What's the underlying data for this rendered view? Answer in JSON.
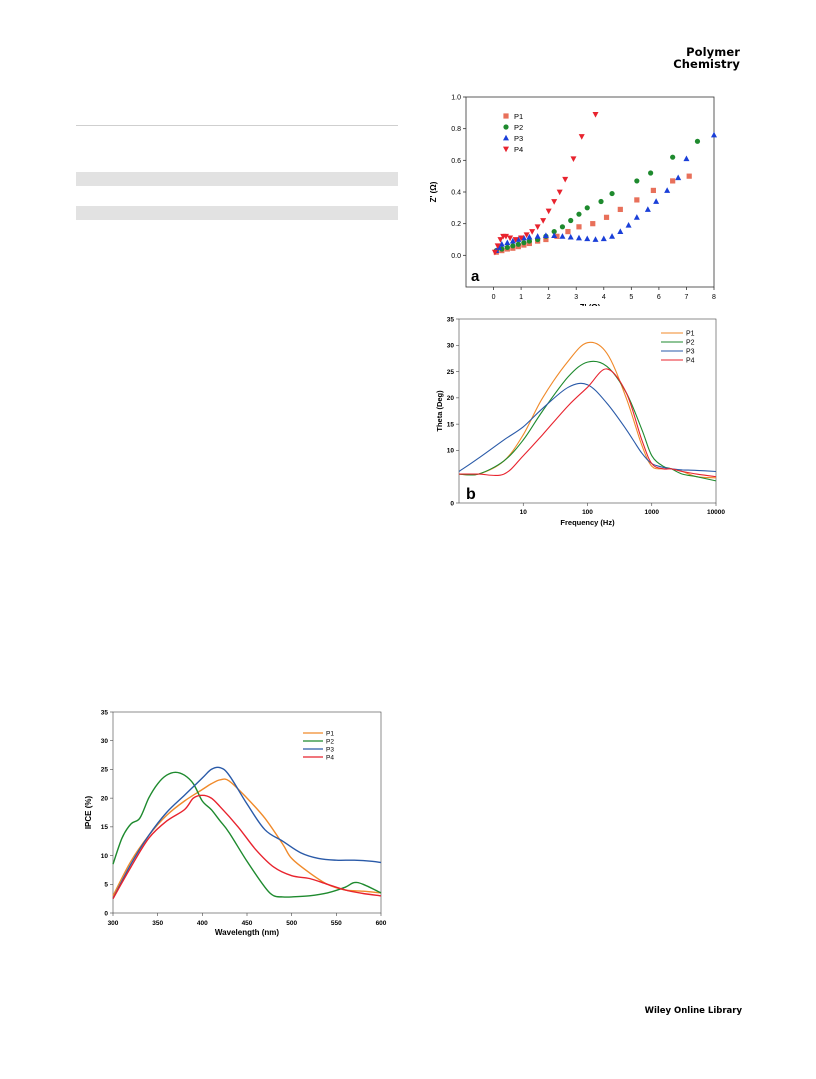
{
  "header": {
    "journal_line1": "Polymer",
    "journal_line2": "Chemistry"
  },
  "footer": {
    "text": "Wiley Online Library"
  },
  "chart_data": [
    {
      "type": "scatter",
      "panel_label": "a",
      "xlabel": "Z' (Ω)",
      "ylabel": "Z' (Ω)",
      "xlim": [
        -1,
        8
      ],
      "ylim": [
        -0.2,
        1.0
      ],
      "xticks": [
        0,
        1,
        2,
        3,
        4,
        5,
        6,
        7,
        8
      ],
      "yticks": [
        0.0,
        0.2,
        0.4,
        0.6,
        0.8,
        1.0
      ],
      "legend_position": "top-left",
      "series": [
        {
          "name": "P1",
          "marker": "square",
          "color": "#e8705a",
          "points": [
            [
              0.1,
              0.02
            ],
            [
              0.3,
              0.03
            ],
            [
              0.5,
              0.04
            ],
            [
              0.7,
              0.045
            ],
            [
              0.9,
              0.055
            ],
            [
              1.1,
              0.065
            ],
            [
              1.3,
              0.075
            ],
            [
              1.6,
              0.09
            ],
            [
              1.9,
              0.1
            ],
            [
              2.3,
              0.12
            ],
            [
              2.7,
              0.15
            ],
            [
              3.1,
              0.18
            ],
            [
              3.6,
              0.2
            ],
            [
              4.1,
              0.24
            ],
            [
              4.6,
              0.29
            ],
            [
              5.2,
              0.35
            ],
            [
              5.8,
              0.41
            ],
            [
              6.5,
              0.47
            ],
            [
              7.1,
              0.5
            ]
          ]
        },
        {
          "name": "P2",
          "marker": "circle",
          "color": "#1e8a2e",
          "points": [
            [
              0.1,
              0.03
            ],
            [
              0.3,
              0.04
            ],
            [
              0.5,
              0.05
            ],
            [
              0.7,
              0.06
            ],
            [
              0.9,
              0.07
            ],
            [
              1.1,
              0.08
            ],
            [
              1.3,
              0.09
            ],
            [
              1.6,
              0.1
            ],
            [
              1.9,
              0.12
            ],
            [
              2.2,
              0.15
            ],
            [
              2.5,
              0.18
            ],
            [
              2.8,
              0.22
            ],
            [
              3.1,
              0.26
            ],
            [
              3.4,
              0.3
            ],
            [
              3.9,
              0.34
            ],
            [
              4.3,
              0.39
            ],
            [
              5.2,
              0.47
            ],
            [
              5.7,
              0.52
            ],
            [
              6.5,
              0.62
            ],
            [
              7.4,
              0.72
            ]
          ]
        },
        {
          "name": "P3",
          "marker": "triangle-up",
          "color": "#1a3fd8",
          "points": [
            [
              0.1,
              0.03
            ],
            [
              0.2,
              0.05
            ],
            [
              0.3,
              0.07
            ],
            [
              0.5,
              0.08
            ],
            [
              0.7,
              0.09
            ],
            [
              0.9,
              0.1
            ],
            [
              1.1,
              0.11
            ],
            [
              1.3,
              0.115
            ],
            [
              1.6,
              0.12
            ],
            [
              1.9,
              0.125
            ],
            [
              2.2,
              0.125
            ],
            [
              2.5,
              0.12
            ],
            [
              2.8,
              0.115
            ],
            [
              3.1,
              0.11
            ],
            [
              3.4,
              0.105
            ],
            [
              3.7,
              0.1
            ],
            [
              4.0,
              0.105
            ],
            [
              4.3,
              0.12
            ],
            [
              4.6,
              0.15
            ],
            [
              4.9,
              0.19
            ],
            [
              5.2,
              0.24
            ],
            [
              5.6,
              0.29
            ],
            [
              5.9,
              0.34
            ],
            [
              6.3,
              0.41
            ],
            [
              6.7,
              0.49
            ],
            [
              7.0,
              0.61
            ],
            [
              8.0,
              0.76
            ]
          ]
        },
        {
          "name": "P4",
          "marker": "triangle-down",
          "color": "#e8232e",
          "points": [
            [
              0.05,
              0.02
            ],
            [
              0.15,
              0.06
            ],
            [
              0.25,
              0.1
            ],
            [
              0.35,
              0.12
            ],
            [
              0.45,
              0.12
            ],
            [
              0.6,
              0.11
            ],
            [
              0.8,
              0.1
            ],
            [
              1.0,
              0.11
            ],
            [
              1.2,
              0.13
            ],
            [
              1.4,
              0.15
            ],
            [
              1.6,
              0.18
            ],
            [
              1.8,
              0.22
            ],
            [
              2.0,
              0.28
            ],
            [
              2.2,
              0.34
            ],
            [
              2.4,
              0.4
            ],
            [
              2.6,
              0.48
            ],
            [
              2.9,
              0.61
            ],
            [
              3.2,
              0.75
            ],
            [
              3.7,
              0.89
            ]
          ]
        }
      ]
    },
    {
      "type": "line",
      "panel_label": "b",
      "xlabel": "Frequency (Hz)",
      "ylabel": "Theta (Deg)",
      "xscale": "log",
      "xlim": [
        1,
        10000
      ],
      "ylim": [
        0,
        35
      ],
      "xticks": [
        10,
        100,
        1000,
        10000
      ],
      "yticks": [
        0,
        10,
        15,
        20,
        25,
        30,
        35
      ],
      "legend_position": "top-right",
      "series": [
        {
          "name": "P1",
          "color": "#f08a2a",
          "x": [
            1,
            2,
            5,
            10,
            20,
            50,
            100,
            200,
            400,
            700,
            1000,
            1500,
            2000,
            3000,
            5000,
            10000
          ],
          "y": [
            5.5,
            5.5,
            8,
            13,
            20,
            27,
            30.5,
            28.5,
            20,
            11,
            7,
            6.5,
            6.5,
            6,
            5,
            4.8
          ]
        },
        {
          "name": "P2",
          "color": "#1e8a2e",
          "x": [
            1,
            2,
            5,
            10,
            20,
            50,
            100,
            200,
            400,
            700,
            1000,
            1500,
            2000,
            3000,
            5000,
            10000
          ],
          "y": [
            5.5,
            5.5,
            8,
            12,
            17.5,
            24,
            26.8,
            26,
            21,
            14,
            9,
            7,
            6.5,
            5.5,
            5,
            4.2
          ]
        },
        {
          "name": "P3",
          "color": "#2a5aa8",
          "x": [
            1,
            2,
            5,
            10,
            20,
            50,
            100,
            200,
            400,
            700,
            1000,
            1500,
            2000,
            3000,
            5000,
            10000
          ],
          "y": [
            6,
            8.5,
            12,
            14.5,
            18,
            22,
            22.5,
            19,
            14,
            9.5,
            7.5,
            6.8,
            6.5,
            6.3,
            6.2,
            6
          ]
        },
        {
          "name": "P4",
          "color": "#e8232e",
          "x": [
            1,
            2,
            5,
            10,
            20,
            50,
            100,
            200,
            400,
            700,
            1000,
            1500,
            2000,
            3000,
            5000,
            10000
          ],
          "y": [
            5.5,
            5.5,
            5.5,
            9,
            13,
            18.5,
            22,
            25.5,
            21,
            12,
            7.5,
            6.5,
            6.5,
            6,
            5.5,
            5
          ]
        }
      ]
    },
    {
      "type": "line",
      "xlabel": "Wavelength (nm)",
      "ylabel": "IPCE (%)",
      "xlim": [
        300,
        600
      ],
      "ylim": [
        0,
        35
      ],
      "xticks": [
        300,
        350,
        400,
        450,
        500,
        550,
        600
      ],
      "yticks": [
        0,
        5,
        10,
        15,
        20,
        25,
        30,
        35
      ],
      "legend_position": "top-right",
      "series": [
        {
          "name": "P1",
          "color": "#f08a2a",
          "x": [
            300,
            320,
            340,
            360,
            380,
            400,
            410,
            420,
            430,
            450,
            470,
            490,
            500,
            520,
            540,
            560,
            580,
            600
          ],
          "y": [
            3,
            9,
            13.5,
            17,
            19.5,
            21.5,
            22.5,
            23.2,
            23,
            20,
            16.5,
            12,
            9.5,
            7,
            5,
            4,
            3.8,
            3.5
          ]
        },
        {
          "name": "P2",
          "color": "#1e8a2e",
          "x": [
            300,
            310,
            320,
            330,
            340,
            350,
            360,
            370,
            380,
            390,
            400,
            410,
            420,
            430,
            450,
            470,
            480,
            490,
            500,
            520,
            540,
            560,
            570,
            580,
            600
          ],
          "y": [
            8.5,
            13,
            15.5,
            16.5,
            20,
            22.5,
            24,
            24.5,
            24,
            22.5,
            19.5,
            18,
            16,
            14,
            9,
            4.5,
            3,
            2.8,
            2.8,
            3,
            3.5,
            4.5,
            5.3,
            5,
            3.5
          ]
        },
        {
          "name": "P3",
          "color": "#2a5aa8",
          "x": [
            300,
            320,
            340,
            360,
            380,
            400,
            410,
            420,
            430,
            450,
            470,
            490,
            510,
            530,
            550,
            570,
            590,
            600
          ],
          "y": [
            2.5,
            8.5,
            13.5,
            17.5,
            20.5,
            23.5,
            25,
            25.3,
            24,
            19,
            14.5,
            12.5,
            10.5,
            9.5,
            9.2,
            9.2,
            9,
            8.8
          ]
        },
        {
          "name": "P4",
          "color": "#e8232e",
          "x": [
            300,
            320,
            340,
            360,
            380,
            390,
            400,
            410,
            420,
            440,
            460,
            480,
            500,
            520,
            540,
            560,
            580,
            600
          ],
          "y": [
            2.5,
            8,
            13,
            16,
            18,
            20,
            20.5,
            20,
            18.5,
            15,
            11,
            8,
            6.5,
            6,
            5,
            4,
            3.4,
            3
          ]
        }
      ]
    }
  ]
}
